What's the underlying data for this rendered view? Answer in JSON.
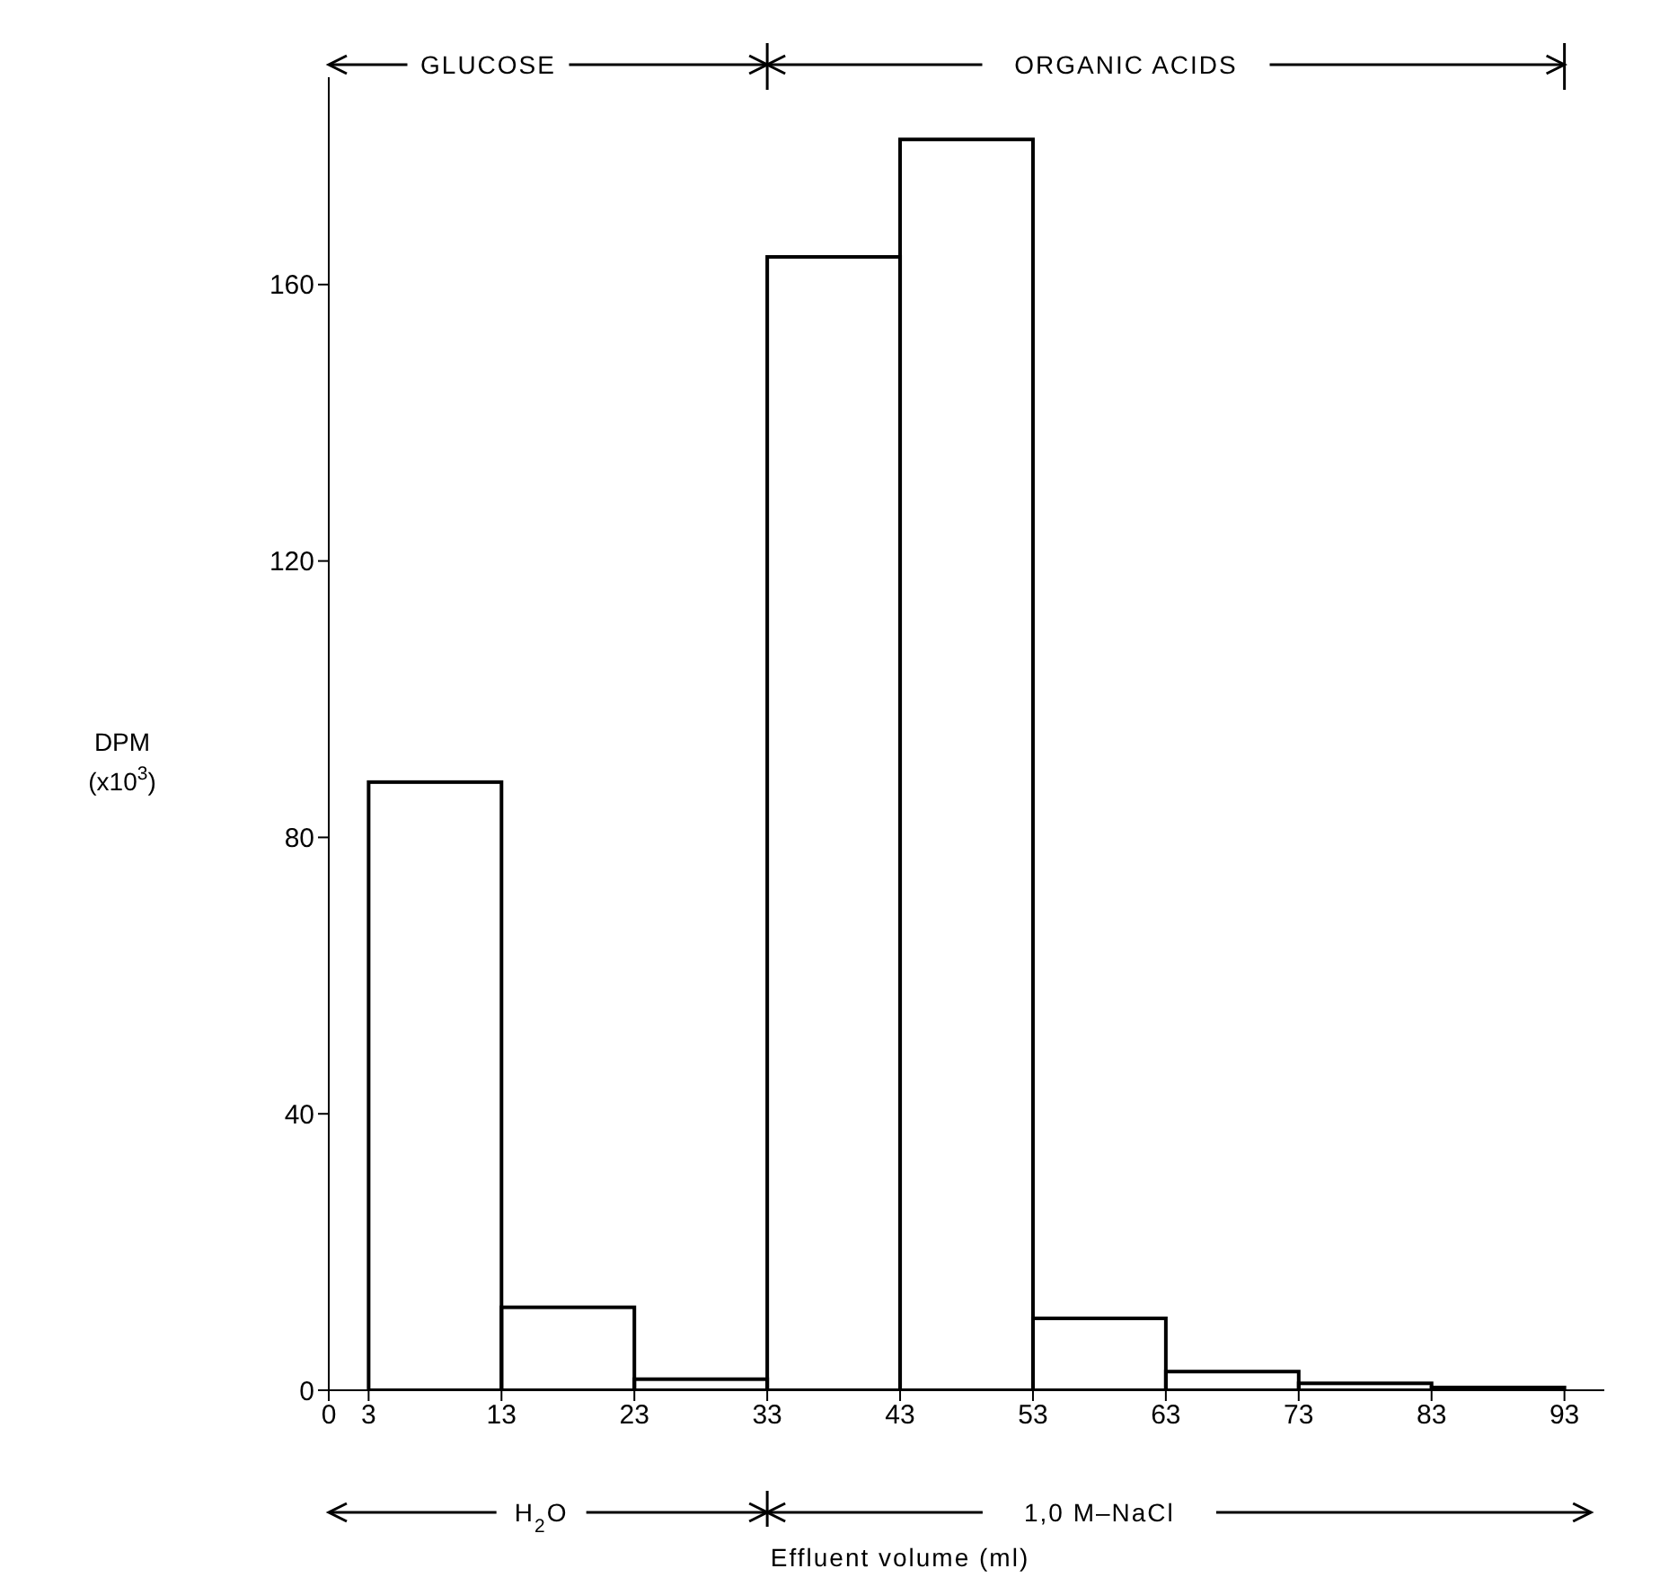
{
  "chart_data": {
    "type": "histogram",
    "xlabel": "Effluent volume (ml)",
    "ylabel": "DPM (x10$^{3}$)",
    "bins": [
      3,
      13,
      23,
      33,
      43,
      53,
      63,
      73,
      83,
      93
    ],
    "values": [
      88,
      12,
      1.6,
      164,
      181,
      10.4,
      2.7,
      1,
      0.4
    ],
    "color": "#000000",
    "xlim": [
      0,
      96
    ],
    "xticks": [
      0,
      3,
      13,
      23,
      33,
      43,
      53,
      63,
      73,
      83,
      93
    ],
    "ylim": [
      0,
      190
    ],
    "yticks": [
      0,
      40,
      80,
      120,
      160
    ],
    "grid": false,
    "legend": false,
    "annotations": [
      "GLUCOSE",
      "ORGANIC ACIDS",
      "H$_{2}$O",
      "1,0 M–NaCl"
    ]
  }
}
